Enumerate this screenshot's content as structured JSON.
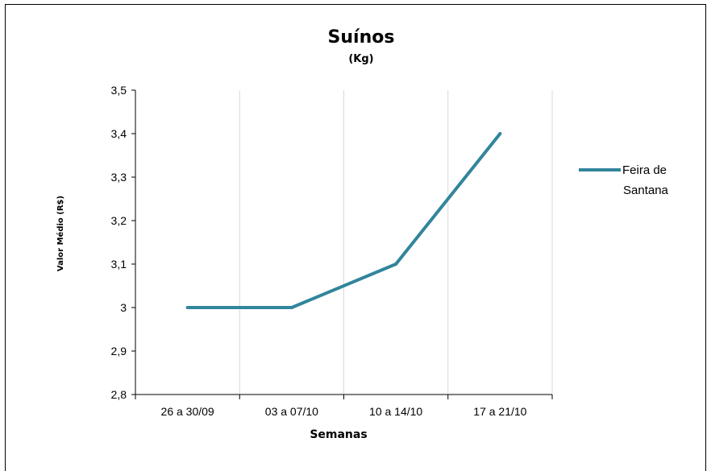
{
  "chart_data": {
    "type": "line",
    "title": "Suínos",
    "subtitle": "(Kg)",
    "xlabel": "Semanas",
    "ylabel": "Valor Médio (R$)",
    "categories": [
      "26 a 30/09",
      "03 a 07/10",
      "10 a 14/10",
      "17 a 21/10"
    ],
    "series": [
      {
        "name": "Feira de Santana",
        "name_lines": [
          "Feira de",
          "Santana"
        ],
        "values": [
          3.0,
          3.0,
          3.1,
          3.4
        ]
      }
    ],
    "ylim": [
      2.8,
      3.5
    ],
    "yticks": [
      2.8,
      2.9,
      3.0,
      3.1,
      3.2,
      3.3,
      3.4,
      3.5
    ],
    "ytick_labels": [
      "2,8",
      "2,9",
      "3",
      "3,1",
      "3,2",
      "3,3",
      "3,4",
      "3,5"
    ],
    "grid": "vertical",
    "legend_position": "right",
    "line_color": "#31859c"
  }
}
